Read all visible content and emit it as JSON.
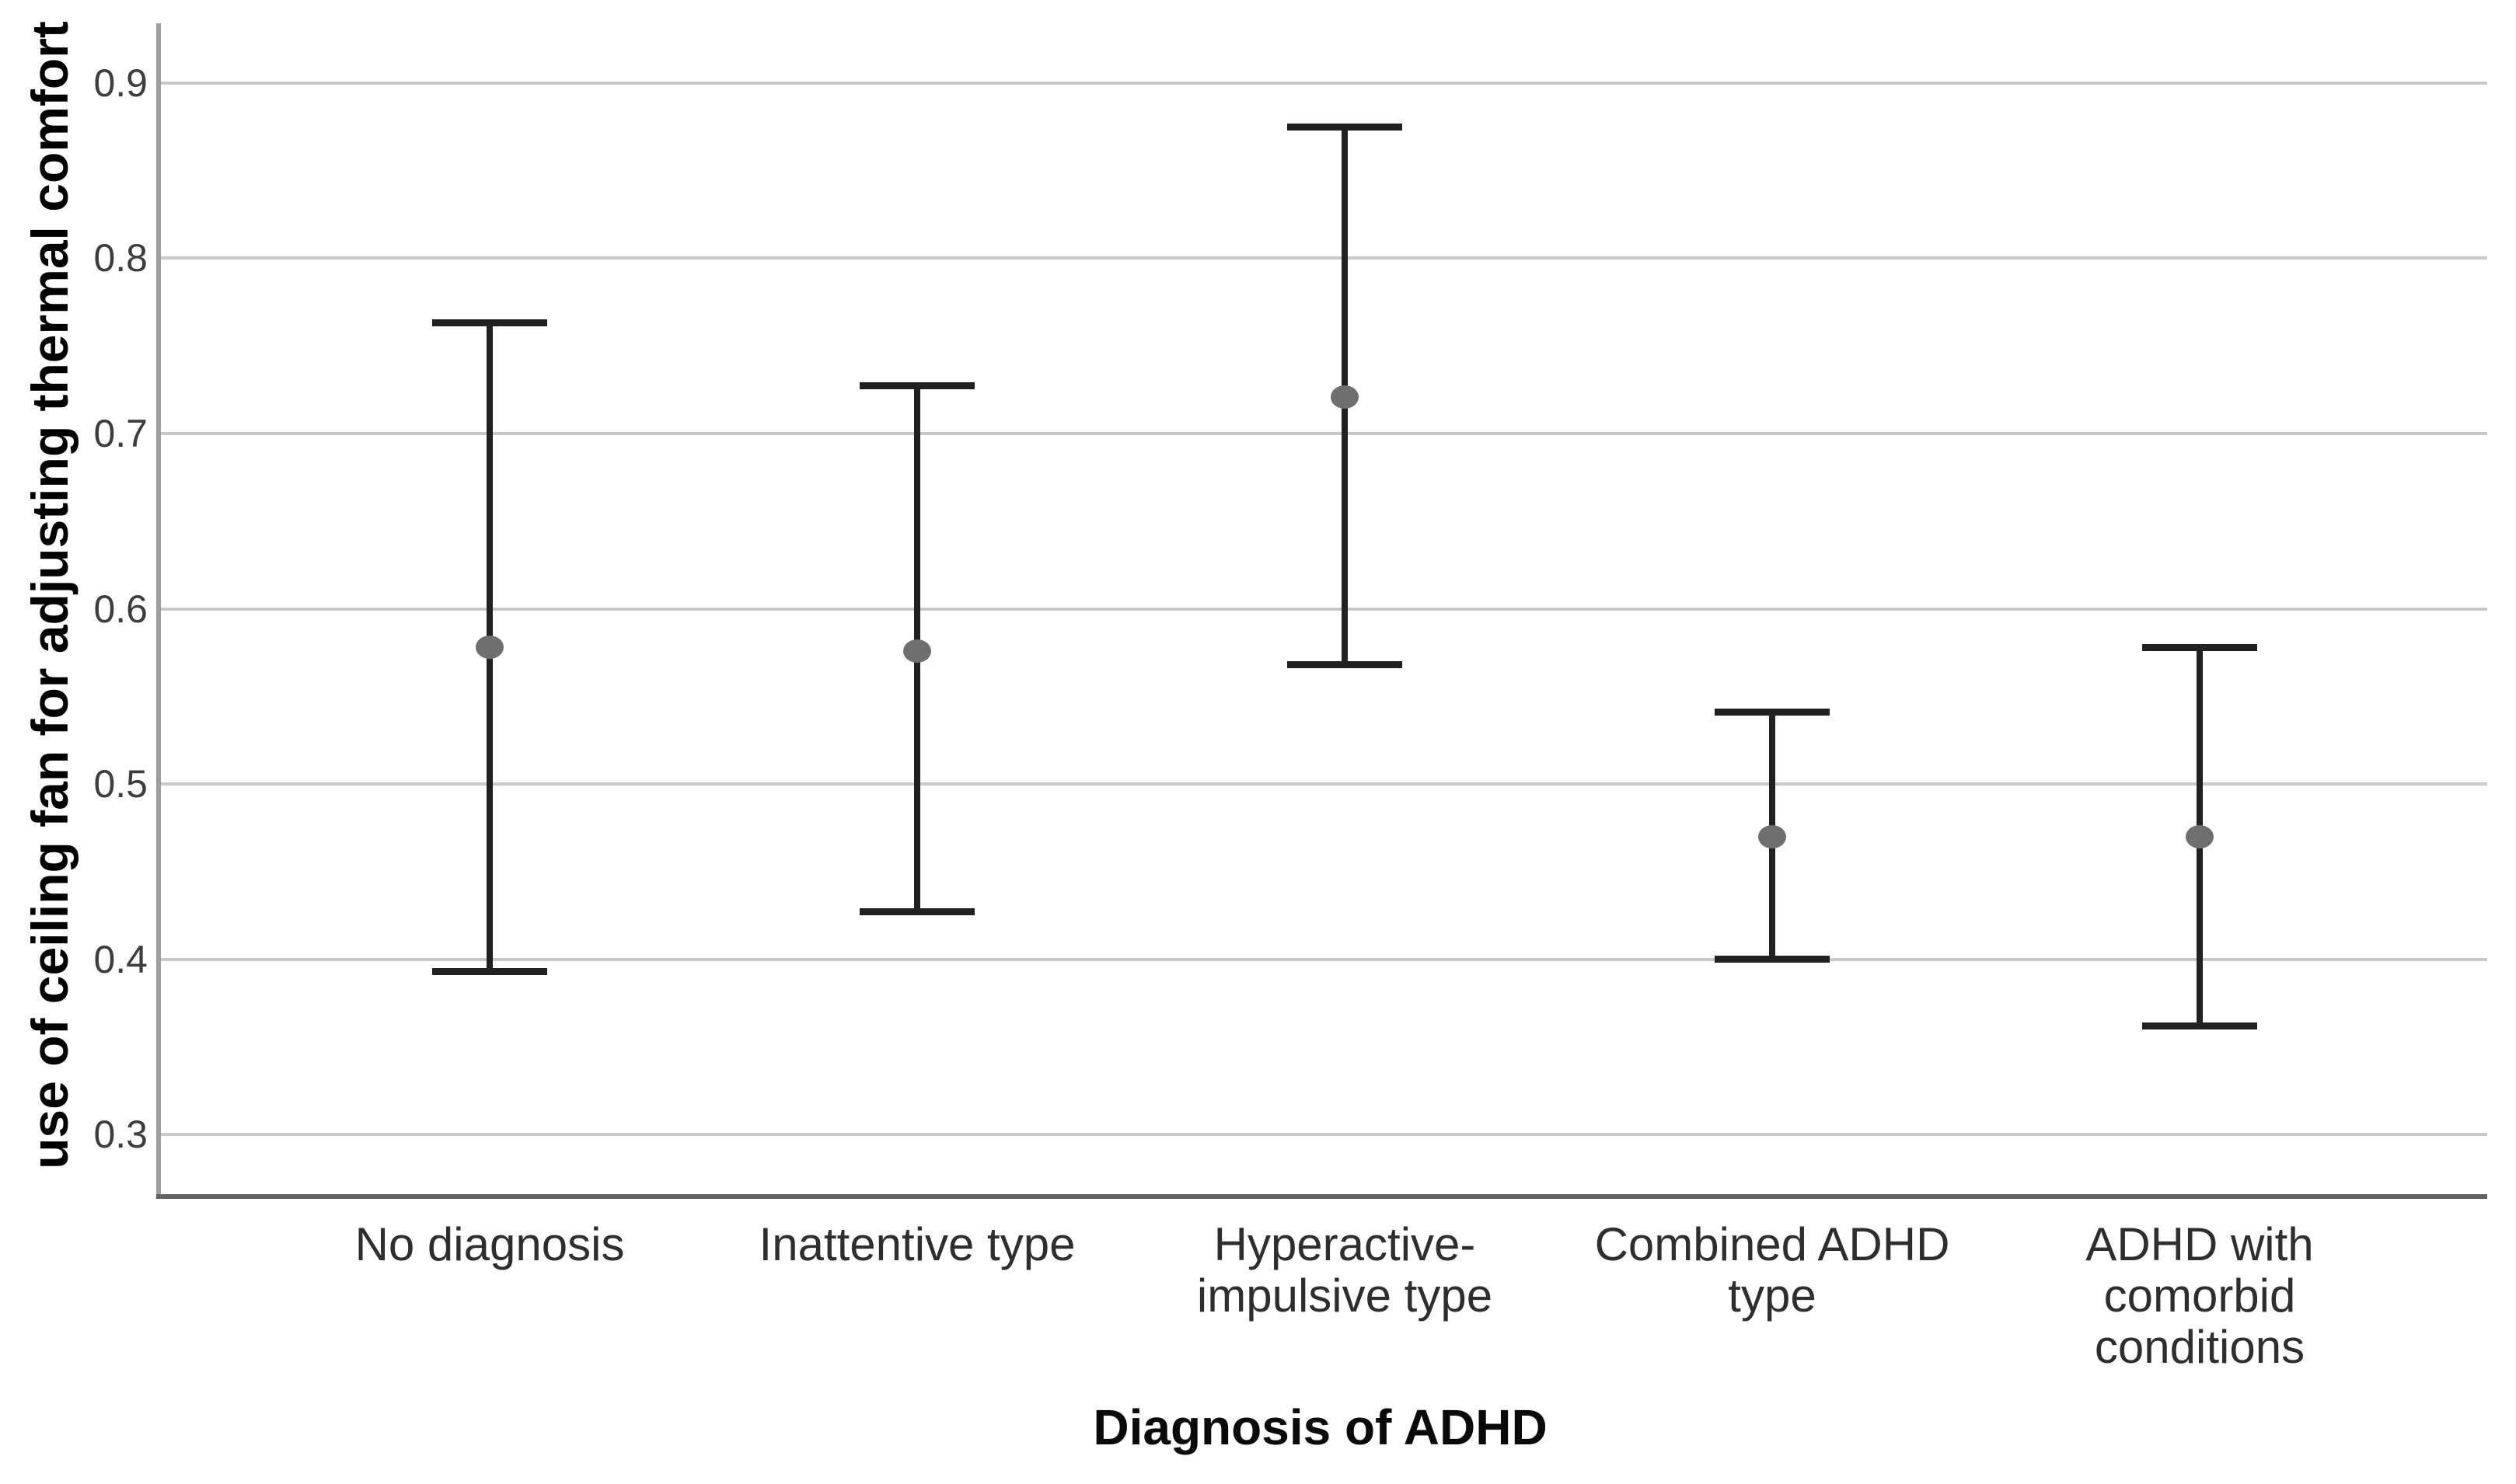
{
  "chart_data": {
    "type": "errorbar",
    "title": "",
    "xlabel": "Diagnosis of ADHD",
    "ylabel": "use of ceiling fan for adjusting thermal comfort",
    "categories": [
      "No diagnosis",
      "Inattentive type",
      "Hyperactive-impulsive type",
      "Combined ADHD type",
      "ADHD with comorbid conditions"
    ],
    "categories_lines": [
      [
        "No diagnosis"
      ],
      [
        "Inattentive type"
      ],
      [
        "Hyperactive-",
        "impulsive type"
      ],
      [
        "Combined ADHD",
        "type"
      ],
      [
        "ADHD with",
        "comorbid",
        "conditions"
      ]
    ],
    "series": [
      {
        "name": "mean",
        "values": [
          0.578,
          0.576,
          0.721,
          0.47,
          0.47
        ]
      },
      {
        "name": "ci_lower",
        "values": [
          0.393,
          0.427,
          0.568,
          0.4,
          0.362
        ]
      },
      {
        "name": "ci_upper",
        "values": [
          0.763,
          0.727,
          0.875,
          0.541,
          0.578
        ]
      }
    ],
    "yticks": [
      0.9,
      0.8,
      0.7,
      0.6,
      0.5,
      0.4,
      0.3
    ],
    "ytick_labels": [
      "0.9",
      "0.8",
      "0.7",
      "0.6",
      "0.5",
      "0.4",
      "0.3"
    ],
    "ylim": [
      0.266,
      0.934
    ],
    "grid": "horizontal",
    "legend": "none",
    "colors": {
      "background": "#ffffff",
      "gridline": "#c9c9c9",
      "y_axis_line": "#9e9e9e",
      "x_axis_line": "#616161",
      "errorbar": "#212121",
      "mean_dot": "#6f6f6f",
      "tick_text": "#3d3d3d",
      "category_text": "#2e2e2e",
      "title_text": "#000000"
    }
  }
}
